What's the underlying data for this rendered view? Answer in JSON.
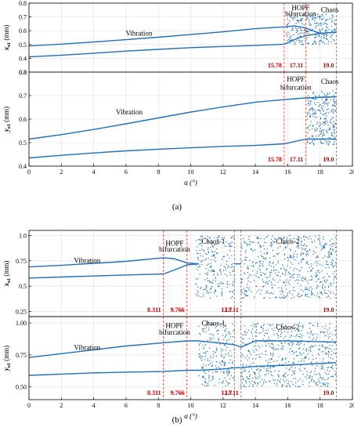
{
  "figure": {
    "caption_a": "(a)",
    "caption_b": "(b)"
  },
  "colors": {
    "series": "#1f6fba",
    "marker": "#e8412c",
    "marker_label": "#c00000",
    "axis": "#000000",
    "grid": "#e0e0e0"
  },
  "chart_data": [
    {
      "id": "a-top",
      "type": "scatter",
      "ylabel": "x",
      "ylabel_sub": "o1",
      "ylabel_unit": " (mm)",
      "xlim": [
        0,
        20
      ],
      "ylim": [
        0.3,
        0.8
      ],
      "yticks": [
        "0.3",
        "0.4",
        "0.5",
        "0.6",
        "0.7",
        "0.8"
      ],
      "grid": true,
      "markers": [
        15.78,
        17.11,
        19.0
      ],
      "marker_labels": [
        "15.78",
        "17.11",
        "19.0"
      ],
      "annotations": [
        {
          "text": "Vibration",
          "x": 6.8,
          "y": 0.565
        },
        {
          "text": "HOPF",
          "x": 16.8,
          "y": 0.75
        },
        {
          "text": "bifurcation",
          "x": 16.8,
          "y": 0.705
        },
        {
          "text": "Chaos",
          "x": 18.6,
          "y": 0.735
        }
      ],
      "series": [
        {
          "values_x": [
            0,
            2,
            4,
            6,
            8,
            10,
            12,
            14,
            15.78,
            16.4,
            17.11,
            18,
            19
          ],
          "values_y": [
            0.49,
            0.503,
            0.518,
            0.535,
            0.553,
            0.572,
            0.592,
            0.615,
            0.628,
            0.636,
            0.62,
            0.58,
            0.59
          ]
        },
        {
          "values_x": [
            0,
            2,
            4,
            6,
            8,
            10,
            12,
            14,
            15.78,
            16.4,
            17.11,
            18,
            19
          ],
          "values_y": [
            0.41,
            0.423,
            0.437,
            0.452,
            0.465,
            0.477,
            0.486,
            0.494,
            0.502,
            0.535,
            0.565,
            0.58,
            0.59
          ]
        }
      ],
      "scatter_range": [
        15.9,
        19.0
      ],
      "scatter_spread": [
        0.5,
        0.72
      ]
    },
    {
      "id": "a-bottom",
      "type": "scatter",
      "ylabel": "y",
      "ylabel_sub": "o1",
      "ylabel_unit": " (mm)",
      "xlabel": "α (°)",
      "xlim": [
        0,
        20
      ],
      "ylim": [
        0.4,
        0.8
      ],
      "xticks": [
        "0",
        "2",
        "4",
        "6",
        "8",
        "10",
        "12",
        "14",
        "16",
        "18",
        "20"
      ],
      "yticks": [
        "0.4",
        "0.5",
        "0.6",
        "0.7",
        "0.8"
      ],
      "grid": true,
      "markers": [
        15.78,
        17.11,
        19.0
      ],
      "marker_labels": [
        "15.78",
        "17.11",
        "19.0"
      ],
      "annotations": [
        {
          "text": "Vibration",
          "x": 6.2,
          "y": 0.62
        },
        {
          "text": "HOPF",
          "x": 16.5,
          "y": 0.76
        },
        {
          "text": "bifurcation",
          "x": 16.5,
          "y": 0.725
        },
        {
          "text": "Chaos",
          "x": 18.6,
          "y": 0.75
        }
      ],
      "series": [
        {
          "values_x": [
            0,
            2,
            4,
            6,
            8,
            10,
            12,
            14,
            15.78,
            17.11,
            19
          ],
          "values_y": [
            0.515,
            0.534,
            0.556,
            0.58,
            0.605,
            0.63,
            0.652,
            0.672,
            0.683,
            0.69,
            0.695
          ]
        },
        {
          "values_x": [
            0,
            2,
            4,
            6,
            8,
            10,
            12,
            14,
            15.78,
            17.11,
            19
          ],
          "values_y": [
            0.435,
            0.446,
            0.456,
            0.465,
            0.472,
            0.478,
            0.484,
            0.488,
            0.495,
            0.515,
            0.515
          ]
        }
      ],
      "scatter_range": [
        17.2,
        19.0
      ],
      "scatter_spread": [
        0.49,
        0.72
      ]
    },
    {
      "id": "b-top",
      "type": "scatter",
      "ylabel": "x",
      "ylabel_sub": "o1",
      "ylabel_unit": " (mm)",
      "xlim": [
        0,
        20
      ],
      "ylim": [
        0.2,
        1.05
      ],
      "yticks": [
        "0.25",
        "0.5",
        "0.75",
        "1.0"
      ],
      "ytick_values": [
        0.25,
        0.5,
        0.75,
        1.0
      ],
      "grid": true,
      "markers": [
        8.311,
        9.766,
        12.7,
        13.11,
        19.0
      ],
      "marker_labels": [
        "8.311",
        "9.766",
        "12.7",
        "13.11",
        "19.0"
      ],
      "annotations": [
        {
          "text": "Vibration",
          "x": 3.6,
          "y": 0.73
        },
        {
          "text": "HOPF",
          "x": 9.0,
          "y": 0.9
        },
        {
          "text": "bifurcation",
          "x": 9.0,
          "y": 0.84
        },
        {
          "text": "Chaos-1",
          "x": 11.4,
          "y": 0.92
        },
        {
          "text": "Chaos-2",
          "x": 16.0,
          "y": 0.92
        }
      ],
      "series": [
        {
          "values_x": [
            0,
            2,
            4,
            6,
            8.311,
            9.0,
            9.766,
            10.5
          ],
          "values_y": [
            0.69,
            0.705,
            0.725,
            0.745,
            0.78,
            0.77,
            0.73,
            0.72
          ]
        },
        {
          "values_x": [
            0,
            2,
            4,
            6,
            8.311,
            9.0,
            9.766,
            10.5
          ],
          "values_y": [
            0.58,
            0.59,
            0.6,
            0.61,
            0.62,
            0.66,
            0.71,
            0.72
          ]
        },
        {
          "values_x": [
            12.7,
            13.11
          ],
          "values_y": [
            0.72,
            0.72
          ]
        }
      ],
      "scatter_range": [
        10.3,
        19.0
      ],
      "scatter_spread": [
        0.38,
        1.0
      ],
      "gap": [
        12.7,
        13.11
      ]
    },
    {
      "id": "b-bottom",
      "type": "scatter",
      "ylabel": "y",
      "ylabel_sub": "o1",
      "ylabel_unit": " (mm)",
      "xlabel": "α (°)",
      "xlim": [
        0,
        20
      ],
      "ylim": [
        0.4,
        1.05
      ],
      "xticks": [
        "0",
        "2",
        "4",
        "6",
        "8",
        "10",
        "12",
        "14",
        "16",
        "18",
        "20"
      ],
      "yticks": [
        "0.50",
        "0.75",
        "1.00"
      ],
      "ytick_values": [
        0.5,
        0.75,
        1.0
      ],
      "grid": true,
      "markers": [
        8.311,
        9.766,
        12.7,
        13.11,
        19.0
      ],
      "marker_labels": [
        "8.311",
        "9.766",
        "12.7",
        "13.11",
        "19.0"
      ],
      "annotations": [
        {
          "text": "Vibration",
          "x": 3.6,
          "y": 0.79
        },
        {
          "text": "HOPF",
          "x": 9.0,
          "y": 0.96
        },
        {
          "text": "bifurcation",
          "x": 9.0,
          "y": 0.91
        },
        {
          "text": "Chaos-1",
          "x": 11.4,
          "y": 0.98
        },
        {
          "text": "Chaos-2",
          "x": 16.0,
          "y": 0.95
        }
      ],
      "series": [
        {
          "values_x": [
            0,
            2,
            4,
            6,
            8.311,
            9.766,
            10.5,
            12.0,
            12.7,
            13.11,
            14.0,
            16,
            19
          ],
          "values_y": [
            0.73,
            0.76,
            0.79,
            0.82,
            0.845,
            0.86,
            0.86,
            0.84,
            0.83,
            0.81,
            0.86,
            0.86,
            0.85
          ]
        },
        {
          "values_x": [
            0,
            2,
            4,
            6,
            8.311,
            9.766,
            10.5,
            12.0,
            12.7,
            13.11,
            14.0,
            16,
            19
          ],
          "values_y": [
            0.59,
            0.6,
            0.61,
            0.615,
            0.62,
            0.63,
            0.63,
            0.64,
            0.65,
            0.65,
            0.66,
            0.67,
            0.69
          ]
        }
      ],
      "scatter_range": [
        10.5,
        19.0
      ],
      "scatter_spread": [
        0.5,
        1.0
      ],
      "gap": [
        12.7,
        13.11
      ]
    }
  ]
}
